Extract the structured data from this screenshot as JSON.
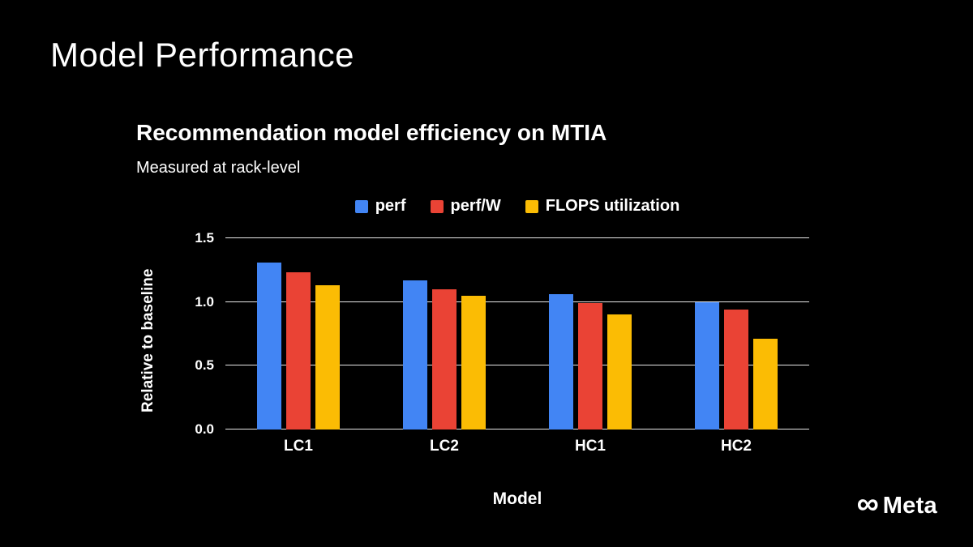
{
  "slide": {
    "title": "Model Performance",
    "logo_text": "Meta"
  },
  "chart_data": {
    "type": "bar",
    "title": "Recommendation model efficiency on MTIA",
    "subtitle": "Measured at rack-level",
    "categories": [
      "LC1",
      "LC2",
      "HC1",
      "HC2"
    ],
    "series": [
      {
        "name": "perf",
        "color": "#4285F4",
        "values": [
          1.31,
          1.17,
          1.06,
          1.0
        ]
      },
      {
        "name": "perf/W",
        "color": "#EA4335",
        "values": [
          1.23,
          1.1,
          0.99,
          0.94
        ]
      },
      {
        "name": "FLOPS utilization",
        "color": "#FBBC04",
        "values": [
          1.13,
          1.05,
          0.9,
          0.71
        ]
      }
    ],
    "xlabel": "Model",
    "ylabel": "Relative to baseline",
    "ylim": [
      0,
      1.5
    ],
    "yticks": [
      0.0,
      0.5,
      1.0,
      1.5
    ],
    "legend_position": "top",
    "grid": true
  }
}
